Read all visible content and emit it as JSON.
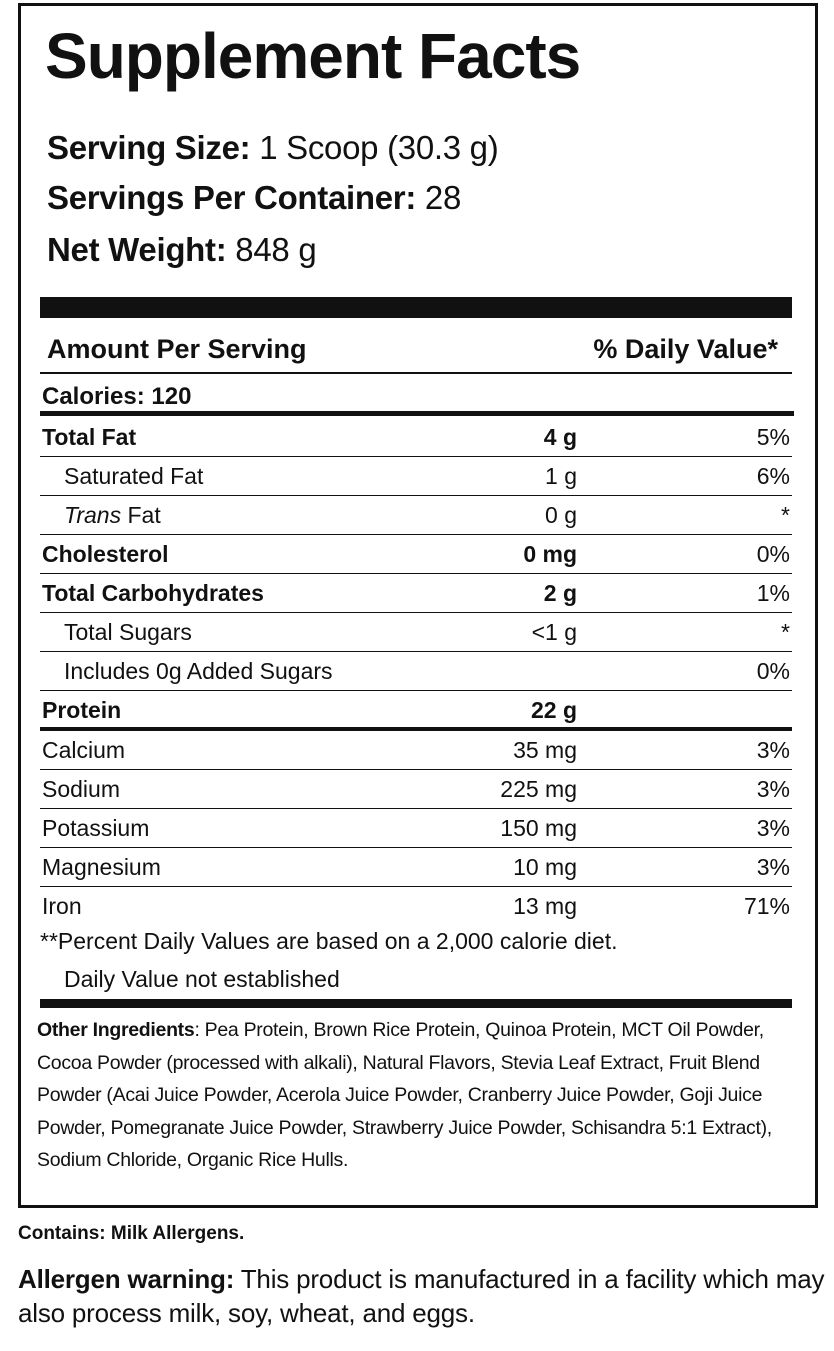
{
  "title": "Supplement Facts",
  "serving": [
    {
      "label": "Serving Size:",
      "value": "1 Scoop (30.3 g)"
    },
    {
      "label": "Servings Per Container:",
      "value": "28"
    },
    {
      "label": "Net Weight:",
      "value": "848 g"
    }
  ],
  "header": {
    "amount": "Amount Per Serving",
    "dv": "% Daily Value*"
  },
  "calories": "Calories: 120",
  "rows": [
    {
      "name": "Total Fat",
      "amount": "4 g",
      "dv": "5%"
    },
    {
      "name": "Saturated Fat",
      "amount": "1 g",
      "dv": "6%"
    },
    {
      "name_italic": "Trans",
      "name": "Fat",
      "amount": "0 g",
      "dv": "*"
    },
    {
      "name": "Cholesterol",
      "amount": "0 mg",
      "dv": "0%"
    },
    {
      "name": "Total Carbohydrates",
      "amount": "2 g",
      "dv": "1%"
    },
    {
      "name": "Total Sugars",
      "amount": "<1 g",
      "dv": "*"
    },
    {
      "name": "Includes 0g Added Sugars",
      "dv": "0%"
    },
    {
      "name": "Protein",
      "amount": "22 g"
    },
    {
      "name": "Calcium",
      "amount": "35 mg",
      "dv": "3%"
    },
    {
      "name": "Sodium",
      "amount": "225 mg",
      "dv": "3%"
    },
    {
      "name": "Potassium",
      "amount": "150 mg",
      "dv": "3%"
    },
    {
      "name": "Magnesium",
      "amount": "10 mg",
      "dv": "3%"
    },
    {
      "name": "Iron",
      "amount": "13 mg",
      "dv": "71%"
    }
  ],
  "footnotes": [
    "**Percent Daily Values are based on a 2,000 calorie diet.",
    "Daily Value not established"
  ],
  "ingredients": {
    "label": "Other Ingredients",
    "text": ": Pea Protein, Brown Rice Protein, Quinoa Protein, MCT Oil Powder, Cocoa Powder (processed with alkali), Natural Flavors, Stevia Leaf Extract, Fruit Blend Powder (Acai Juice Powder, Acerola Juice Powder, Cranberry Juice Powder, Goji Juice Powder, Pomegranate Juice Powder, Strawberry Juice Powder, Schisandra 5:1 Extract), Sodium Chloride, Organic Rice Hulls."
  },
  "contains": "Contains: Milk Allergens.",
  "warning": {
    "label": "Allergen warning:",
    "text": "This product is manufactured in a facility which may also process milk, soy, wheat, and eggs."
  }
}
